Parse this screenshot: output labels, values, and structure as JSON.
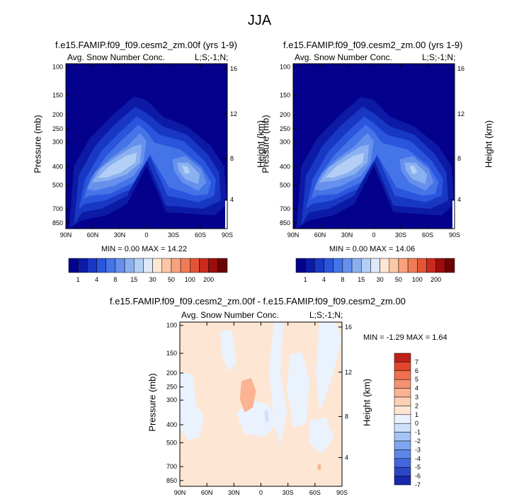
{
  "page_title": "JJA",
  "stats_template": "MIN = {min}   MAX = {max}",
  "colors": {
    "snow_scale": [
      "#04018c",
      "#0c1aa6",
      "#1838c4",
      "#2a55dc",
      "#4474e8",
      "#6690ec",
      "#8bb0f0",
      "#b4cff5",
      "#dde8fb",
      "#fde6d4",
      "#fbc7a5",
      "#f8a27d",
      "#f07c57",
      "#e35437",
      "#c92a1d",
      "#9c0d0b",
      "#6a0303"
    ],
    "diff_scale": [
      "#0c0f8f",
      "#1928aa",
      "#2d46c6",
      "#4466db",
      "#5c86e8",
      "#7ea5ef",
      "#a4c4f5",
      "#cce0fb",
      "#eaf2fe",
      "#fde6d4",
      "#fcd0b4",
      "#fbb393",
      "#f69271",
      "#ef6f4e",
      "#e0452d",
      "#c0201a",
      "#8c0708"
    ]
  },
  "chart_data": [
    {
      "type": "heatmap",
      "panel": "control",
      "title": "f.e15.FAMIP.f09_f09.cesm2_zm.00f (yrs 1-9)",
      "left_label": "Avg. Snow Number Conc.",
      "right_label": "L;S;-1;N;",
      "xlabel": "",
      "ylabel": "Pressure (mb)",
      "ylabel_right": "Height (km)",
      "x_ticks": [
        "90N",
        "60N",
        "30N",
        "0",
        "30S",
        "60S",
        "90S"
      ],
      "y_ticks": [
        "100",
        "150",
        "200",
        "250",
        "300",
        "400",
        "500",
        "700",
        "850"
      ],
      "y_ticks_right": [
        "16",
        "12",
        "8",
        "4"
      ],
      "min": "0.00",
      "max": "14.22",
      "colorbar_labels": [
        "1",
        "4",
        "8",
        "15",
        "30",
        "50",
        "100",
        "200"
      ]
    },
    {
      "type": "heatmap",
      "panel": "test",
      "title": "f.e15.FAMIP.f09_f09.cesm2_zm.00 (yrs 1-9)",
      "left_label": "Avg. Snow Number Conc.",
      "right_label": "L;S;-1;N;",
      "xlabel": "",
      "ylabel": "Pressure (mb)",
      "ylabel_right": "Height (km)",
      "x_ticks": [
        "90N",
        "60N",
        "30N",
        "0",
        "30S",
        "60S",
        "90S"
      ],
      "y_ticks": [
        "100",
        "150",
        "200",
        "250",
        "300",
        "400",
        "500",
        "700",
        "850"
      ],
      "y_ticks_right": [
        "16",
        "12",
        "8",
        "4"
      ],
      "min": "0.00",
      "max": "14.06",
      "colorbar_labels": [
        "1",
        "4",
        "8",
        "15",
        "30",
        "50",
        "100",
        "200"
      ]
    },
    {
      "type": "heatmap",
      "panel": "difference",
      "title": "f.e15.FAMIP.f09_f09.cesm2_zm.00f - f.e15.FAMIP.f09_f09.cesm2_zm.00",
      "left_label": "Avg. Snow Number Conc.",
      "right_label": "L;S;-1;N;",
      "xlabel": "",
      "ylabel": "Pressure (mb)",
      "ylabel_right": "Height (km)",
      "x_ticks": [
        "90N",
        "60N",
        "30N",
        "0",
        "30S",
        "60S",
        "90S"
      ],
      "y_ticks": [
        "100",
        "150",
        "200",
        "250",
        "300",
        "400",
        "500",
        "700",
        "850"
      ],
      "y_ticks_right": [
        "16",
        "12",
        "8",
        "4"
      ],
      "min": "-1.29",
      "max": "1.64",
      "colorbar_labels": [
        "7",
        "6",
        "5",
        "4",
        "3",
        "2",
        "1",
        "0",
        "-1",
        "-2",
        "-3",
        "-4",
        "-5",
        "-6",
        "-7"
      ]
    }
  ]
}
